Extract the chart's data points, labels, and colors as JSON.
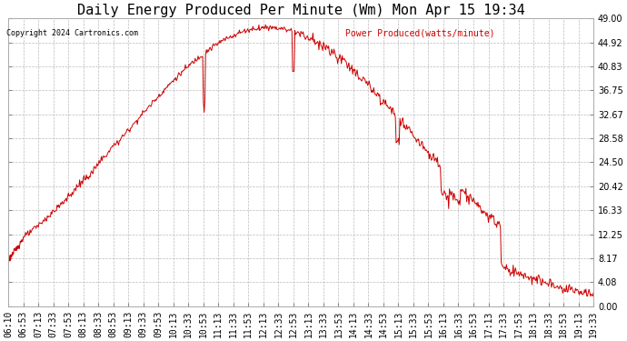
{
  "title": "Daily Energy Produced Per Minute (Wm) Mon Apr 15 19:34",
  "copyright": "Copyright 2024 Cartronics.com",
  "legend_label": "Power Produced(watts/minute)",
  "legend_color": "#cc0000",
  "copyright_color": "#000000",
  "line_color": "#cc0000",
  "background_color": "#ffffff",
  "plot_bg_color": "#ffffff",
  "grid_color": "#bbbbbb",
  "yticks": [
    0.0,
    4.08,
    8.17,
    12.25,
    16.33,
    20.42,
    24.5,
    28.58,
    32.67,
    36.75,
    40.83,
    44.92,
    49.0
  ],
  "ymin": 0.0,
  "ymax": 49.0,
  "title_fontsize": 11,
  "axis_fontsize": 7,
  "xtick_labels": [
    "06:10",
    "06:53",
    "07:13",
    "07:33",
    "07:53",
    "08:13",
    "08:33",
    "08:53",
    "09:13",
    "09:33",
    "09:53",
    "10:13",
    "10:33",
    "10:53",
    "11:13",
    "11:33",
    "11:53",
    "12:13",
    "12:33",
    "12:53",
    "13:13",
    "13:33",
    "13:53",
    "14:13",
    "14:33",
    "14:53",
    "15:13",
    "15:33",
    "15:53",
    "16:13",
    "16:33",
    "16:53",
    "17:13",
    "17:33",
    "17:53",
    "18:13",
    "18:33",
    "18:53",
    "19:13",
    "19:33"
  ]
}
